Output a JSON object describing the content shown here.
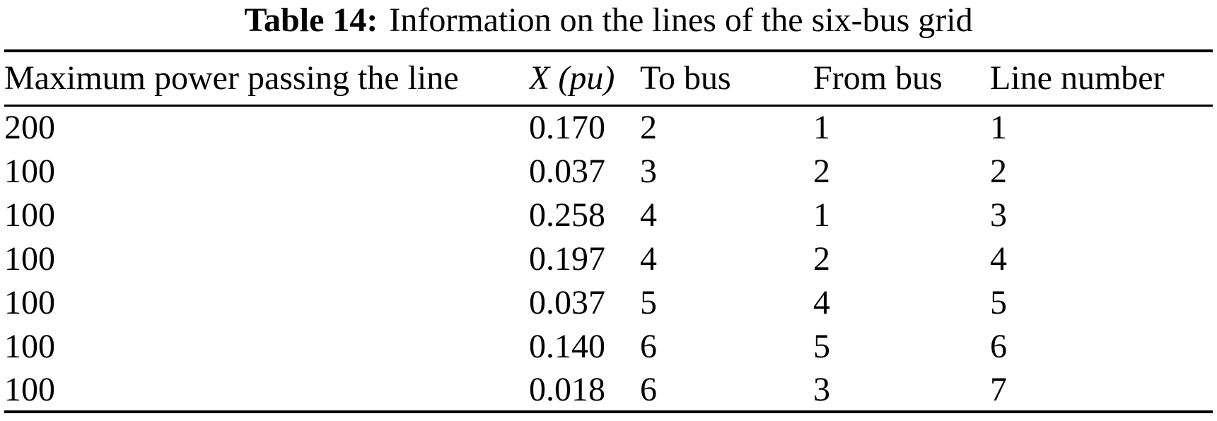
{
  "caption": {
    "label": "Table 14:",
    "title": "Information on the lines of the six-bus grid"
  },
  "table": {
    "headers": {
      "max_power": "Maximum power passing the line",
      "x_symbol": "X",
      "x_unit": "(pu)",
      "to_bus": "To bus",
      "from_bus": "From bus",
      "line_number": "Line number"
    },
    "rows": [
      {
        "max_power": "200",
        "x_pu": "0.170",
        "to_bus": "2",
        "from_bus": "1",
        "line_number": "1"
      },
      {
        "max_power": "100",
        "x_pu": "0.037",
        "to_bus": "3",
        "from_bus": "2",
        "line_number": "2"
      },
      {
        "max_power": "100",
        "x_pu": "0.258",
        "to_bus": "4",
        "from_bus": "1",
        "line_number": "3"
      },
      {
        "max_power": "100",
        "x_pu": "0.197",
        "to_bus": "4",
        "from_bus": "2",
        "line_number": "4"
      },
      {
        "max_power": "100",
        "x_pu": "0.037",
        "to_bus": "5",
        "from_bus": "4",
        "line_number": "5"
      },
      {
        "max_power": "100",
        "x_pu": "0.140",
        "to_bus": "6",
        "from_bus": "5",
        "line_number": "6"
      },
      {
        "max_power": "100",
        "x_pu": "0.018",
        "to_bus": "6",
        "from_bus": "3",
        "line_number": "7"
      }
    ]
  },
  "colors": {
    "text": "#000000",
    "background": "#ffffff",
    "rules": "#000000"
  }
}
